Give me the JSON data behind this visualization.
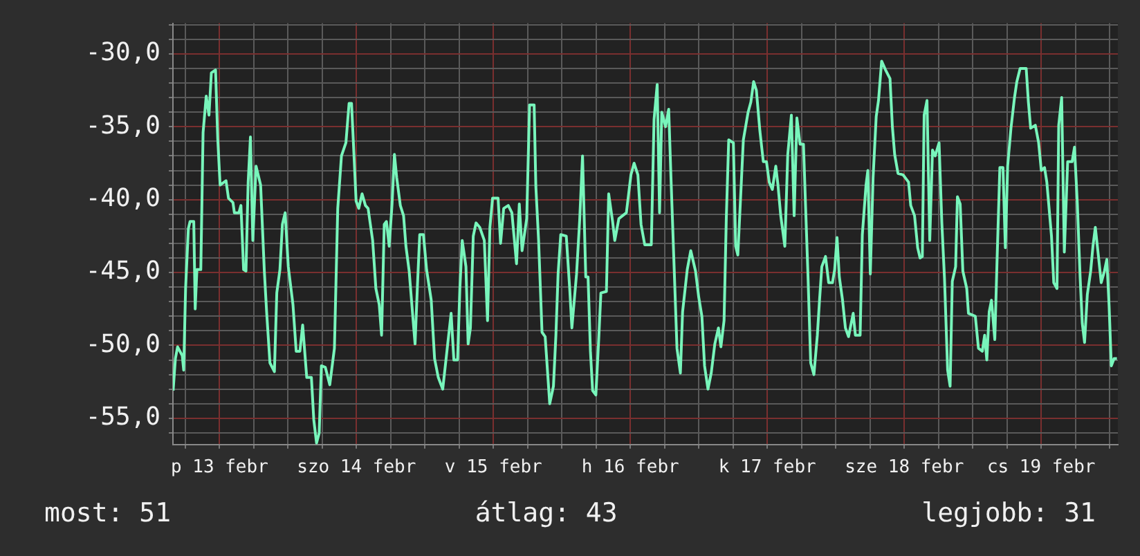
{
  "chart_data": {
    "type": "line",
    "xlim": [
      "--02-12T15:50",
      "--02-19T13:26"
    ],
    "ylim": [
      -56.8,
      -27.9
    ],
    "xticks": [
      {
        "value": "--02-12T18:00",
        "label": null
      },
      {
        "value": "--02-13",
        "label": "p 13 febr"
      },
      {
        "value": "--02-13T06:00",
        "label": null
      },
      {
        "value": "--02-13T12:00",
        "label": null
      },
      {
        "value": "--02-13T18:00",
        "label": null
      },
      {
        "value": "--02-14",
        "label": "szo 14 febr"
      },
      {
        "value": "--02-14T06:00",
        "label": null
      },
      {
        "value": "--02-14T12:00",
        "label": null
      },
      {
        "value": "--02-14T18:00",
        "label": null
      },
      {
        "value": "--02-15",
        "label": "v 15 febr"
      },
      {
        "value": "--02-15T06:00",
        "label": null
      },
      {
        "value": "--02-15T12:00",
        "label": null
      },
      {
        "value": "--02-15T18:00",
        "label": null
      },
      {
        "value": "--02-16",
        "label": "h 16 febr"
      },
      {
        "value": "--02-16T06:00",
        "label": null
      },
      {
        "value": "--02-16T12:00",
        "label": null
      },
      {
        "value": "--02-16T18:00",
        "label": null
      },
      {
        "value": "--02-17",
        "label": "k 17 febr"
      },
      {
        "value": "--02-17T06:00",
        "label": null
      },
      {
        "value": "--02-17T12:00",
        "label": null
      },
      {
        "value": "--02-17T18:00",
        "label": null
      },
      {
        "value": "--02-18",
        "label": "sze 18 febr"
      },
      {
        "value": "--02-18T06:00",
        "label": null
      },
      {
        "value": "--02-18T12:00",
        "label": null
      },
      {
        "value": "--02-18T18:00",
        "label": null
      },
      {
        "value": "--02-19",
        "label": "cs 19 febr"
      },
      {
        "value": "--02-19T06:00",
        "label": null
      },
      {
        "value": "--02-19T12:00",
        "label": null
      }
    ],
    "yticks": [
      {
        "value": -56,
        "label": null
      },
      {
        "value": -55,
        "label": "-55,0"
      },
      {
        "value": -54,
        "label": null
      },
      {
        "value": -53,
        "label": null
      },
      {
        "value": -52,
        "label": null
      },
      {
        "value": -51,
        "label": null
      },
      {
        "value": -50,
        "label": "-50,0"
      },
      {
        "value": -49,
        "label": null
      },
      {
        "value": -48,
        "label": null
      },
      {
        "value": -47,
        "label": null
      },
      {
        "value": -46,
        "label": null
      },
      {
        "value": -45,
        "label": "-45,0"
      },
      {
        "value": -44,
        "label": null
      },
      {
        "value": -43,
        "label": null
      },
      {
        "value": -42,
        "label": null
      },
      {
        "value": -41,
        "label": null
      },
      {
        "value": -40,
        "label": "-40,0"
      },
      {
        "value": -39,
        "label": null
      },
      {
        "value": -38,
        "label": null
      },
      {
        "value": -37,
        "label": null
      },
      {
        "value": -36,
        "label": null
      },
      {
        "value": -35,
        "label": "-35,0"
      },
      {
        "value": -34,
        "label": null
      },
      {
        "value": -33,
        "label": null
      },
      {
        "value": -32,
        "label": null
      },
      {
        "value": -31,
        "label": null
      },
      {
        "value": -30,
        "label": "-30,0"
      },
      {
        "value": -29,
        "label": null
      },
      {
        "value": -28,
        "label": null
      }
    ],
    "grid": true,
    "legend": false,
    "marker": "none",
    "line_style": "solid",
    "annotations": [
      "most: 51",
      "átlag: 43",
      "legjobb: 31"
    ],
    "series": [
      {
        "color": "#78f5bb",
        "x": [
          "--02-12T15:52",
          "--02-12T16:16",
          "--02-12T16:39",
          "--02-12T17:28",
          "--02-12T17:43",
          "--02-12T18:03",
          "--02-12T18:32",
          "--02-12T18:50",
          "--02-12T19:29",
          "--02-12T19:44",
          "--02-12T20:02",
          "--02-12T20:43",
          "--02-12T21:07",
          "--02-12T21:40",
          "--02-12T22:09",
          "--02-12T22:34",
          "--02-12T23:18",
          "--02-12T23:41",
          "--02-13T00:06",
          "--02-13T01:08",
          "--02-13T01:34",
          "--02-13T02:21",
          "--02-13T02:36",
          "--02-13T03:24",
          "--02-13T03:45",
          "--02-13T04:13",
          "--02-13T04:38",
          "--02-13T05:01",
          "--02-13T05:25",
          "--02-13T05:50",
          "--02-13T06:24",
          "--02-13T07:12",
          "--02-13T07:51",
          "--02-13T08:15",
          "--02-13T08:50",
          "--02-13T09:37",
          "--02-13T10:02",
          "--02-13T10:35",
          "--02-13T11:01",
          "--02-13T11:30",
          "--02-13T12:03",
          "--02-13T12:52",
          "--02-13T13:26",
          "--02-13T14:05",
          "--02-13T14:34",
          "--02-13T15:17",
          "--02-13T16:06",
          "--02-13T16:31",
          "--02-13T17:00",
          "--02-13T17:28",
          "--02-13T17:51",
          "--02-13T18:32",
          "--02-13T19:19",
          "--02-13T20:08",
          "--02-13T20:43",
          "--02-13T21:22",
          "--02-13T22:09",
          "--02-13T22:42",
          "--02-13T23:08",
          "--02-13T23:37",
          "--02-13T23:56",
          "--02-14T00:24",
          "--02-14T00:59",
          "--02-14T01:34",
          "--02-14T02:02",
          "--02-14T02:50",
          "--02-14T03:24",
          "--02-14T03:59",
          "--02-14T04:24",
          "--02-14T04:52",
          "--02-14T05:15",
          "--02-14T05:44",
          "--02-14T06:14",
          "--02-14T06:39",
          "--02-14T07:03",
          "--02-14T07:41",
          "--02-14T08:15",
          "--02-14T08:40",
          "--02-14T09:14",
          "--02-14T09:52",
          "--02-14T10:16",
          "--02-14T10:41",
          "--02-14T11:05",
          "--02-14T11:44",
          "--02-14T12:17",
          "--02-14T13:06",
          "--02-14T13:41",
          "--02-14T14:20",
          "--02-14T15:07",
          "--02-14T15:56",
          "--02-14T16:35",
          "--02-14T17:04",
          "--02-14T17:43",
          "--02-14T18:07",
          "--02-14T18:32",
          "--02-14T19:11",
          "--02-14T19:34",
          "--02-14T19:58",
          "--02-14T20:28",
          "--02-14T20:57",
          "--02-14T21:36",
          "--02-14T22:24",
          "--02-14T22:58",
          "--02-14T23:23",
          "--02-14T23:51",
          "--02-15T00:49",
          "--02-15T01:15",
          "--02-15T01:48",
          "--02-15T02:36",
          "--02-15T03:14",
          "--02-15T04:03",
          "--02-15T04:32",
          "--02-15T05:01",
          "--02-15T05:50",
          "--02-15T06:20",
          "--02-15T07:08",
          "--02-15T07:26",
          "--02-15T07:55",
          "--02-15T08:31",
          "--02-15T09:04",
          "--02-15T09:52",
          "--02-15T10:31",
          "--02-15T10:57",
          "--02-15T11:20",
          "--02-15T11:48",
          "--02-15T12:46",
          "--02-15T13:22",
          "--02-15T13:45",
          "--02-15T14:34",
          "--02-15T15:07",
          "--02-15T15:37",
          "--02-15T16:11",
          "--02-15T16:35",
          "--02-15T17:00",
          "--02-15T17:23",
          "--02-15T17:57",
          "--02-15T18:27",
          "--02-15T18:50",
          "--02-15T19:48",
          "--02-15T20:12",
          "--02-15T20:53",
          "--02-15T21:16",
          "--02-15T21:59",
          "--02-15T23:18",
          "--02-16T00:06",
          "--02-16T00:39",
          "--02-16T01:19",
          "--02-16T01:52",
          "--02-16T02:31",
          "--02-16T03:40",
          "--02-16T04:09",
          "--02-16T04:42",
          "--02-16T05:07",
          "--02-16T05:30",
          "--02-16T06:10",
          "--02-16T06:43",
          "--02-16T07:08",
          "--02-16T07:41",
          "--02-16T08:10",
          "--02-16T08:46",
          "--02-16T09:09",
          "--02-16T09:58",
          "--02-16T10:35",
          "--02-16T11:25",
          "--02-16T11:59",
          "--02-16T12:32",
          "--02-16T13:00",
          "--02-16T13:36",
          "--02-16T14:10",
          "--02-16T14:48",
          "--02-16T15:26",
          "--02-16T15:52",
          "--02-16T16:25",
          "--02-16T16:49",
          "--02-16T17:14",
          "--02-16T18:03",
          "--02-16T18:27",
          "--02-16T18:50",
          "--02-16T19:15",
          "--02-16T19:48",
          "--02-16T20:38",
          "--02-16T21:07",
          "--02-16T21:36",
          "--02-16T22:05",
          "--02-16T22:42",
          "--02-16T23:18",
          "--02-16T23:51",
          "--02-17T00:20",
          "--02-17T00:53",
          "--02-17T01:29",
          "--02-17T01:52",
          "--02-17T02:21",
          "--02-17T03:04",
          "--02-17T03:35",
          "--02-17T04:13",
          "--02-17T04:42",
          "--02-17T05:11",
          "--02-17T05:44",
          "--02-17T06:20",
          "--02-17T06:43",
          "--02-17T07:08",
          "--02-17T07:36",
          "--02-17T08:10",
          "--02-17T08:46",
          "--02-17T09:09",
          "--02-17T09:33",
          "--02-17T10:12",
          "--02-17T10:45",
          "--02-17T11:25",
          "--02-17T11:48",
          "--02-17T12:13",
          "--02-17T12:37",
          "--02-17T13:11",
          "--02-17T13:41",
          "--02-17T14:14",
          "--02-17T15:03",
          "--02-17T15:26",
          "--02-17T16:16",
          "--02-17T16:39",
          "--02-17T17:18",
          "--02-17T17:37",
          "--02-17T18:03",
          "--02-17T18:32",
          "--02-17T19:05",
          "--02-17T19:29",
          "--02-17T20:02",
          "--02-17T20:43",
          "--02-17T21:30",
          "--02-17T21:55",
          "--02-17T22:19",
          "--02-17T22:54",
          "--02-17T23:47",
          "--02-18T00:45",
          "--02-18T01:08",
          "--02-18T01:48",
          "--02-18T02:21",
          "--02-18T02:46",
          "--02-18T03:10",
          "--02-18T03:29",
          "--02-18T03:59",
          "--02-18T04:28",
          "--02-18T04:57",
          "--02-18T05:25",
          "--02-18T06:06",
          "--02-18T06:35",
          "--02-18T07:03",
          "--02-18T07:36",
          "--02-18T08:02",
          "--02-18T08:25",
          "--02-18T09:00",
          "--02-18T09:19",
          "--02-18T09:48",
          "--02-18T10:16",
          "--02-18T10:57",
          "--02-18T11:15",
          "--02-18T12:27",
          "--02-18T13:00",
          "--02-18T13:41",
          "--02-18T14:05",
          "--02-18T14:28",
          "--02-18T14:53",
          "--02-18T15:17",
          "--02-18T15:52",
          "--02-18T16:16",
          "--02-18T16:45",
          "--02-18T17:18",
          "--02-18T17:43",
          "--02-18T18:07",
          "--02-18T18:42",
          "--02-18T19:19",
          "--02-18T19:44",
          "--02-18T20:18",
          "--02-18T21:22",
          "--02-18T21:45",
          "--02-18T22:09",
          "--02-18T22:58",
          "--02-18T23:33",
          "--02-19T00:01",
          "--02-19T00:35",
          "--02-19T00:59",
          "--02-19T01:48",
          "--02-19T02:12",
          "--02-19T02:46",
          "--02-19T03:04",
          "--02-19T03:35",
          "--02-19T04:03",
          "--02-19T04:38",
          "--02-19T05:25",
          "--02-19T05:50",
          "--02-19T06:20",
          "--02-19T06:49",
          "--02-19T07:12",
          "--02-19T07:36",
          "--02-19T08:05",
          "--02-19T08:40",
          "--02-19T09:04",
          "--02-19T09:29",
          "--02-19T10:02",
          "--02-19T10:31",
          "--02-19T11:05",
          "--02-19T11:30",
          "--02-19T11:54",
          "--02-19T12:17",
          "--02-19T12:46",
          "--02-19T13:16"
        ],
        "values": [
          -53.1,
          -50.9,
          -50.1,
          -50.7,
          -51.7,
          -46.1,
          -42.0,
          -41.5,
          -41.5,
          -47.5,
          -44.8,
          -44.8,
          -35.4,
          -32.9,
          -34.2,
          -31.3,
          -31.1,
          -35.8,
          -39.0,
          -38.7,
          -39.9,
          -40.2,
          -40.9,
          -40.9,
          -40.4,
          -44.8,
          -44.9,
          -38.8,
          -35.7,
          -42.8,
          -37.7,
          -39.0,
          -44.9,
          -47.7,
          -51.2,
          -51.8,
          -46.4,
          -44.8,
          -41.7,
          -40.9,
          -44.6,
          -47.2,
          -50.4,
          -50.4,
          -48.6,
          -52.2,
          -52.2,
          -55.1,
          -56.7,
          -56.0,
          -51.4,
          -51.5,
          -52.7,
          -50.2,
          -40.6,
          -37.0,
          -36.1,
          -33.4,
          -33.4,
          -37.4,
          -40.1,
          -40.6,
          -39.6,
          -40.4,
          -40.6,
          -42.8,
          -46.1,
          -47.2,
          -49.3,
          -41.7,
          -41.5,
          -43.2,
          -40.3,
          -36.9,
          -38.5,
          -40.4,
          -41.1,
          -43.2,
          -44.9,
          -48.0,
          -49.9,
          -45.9,
          -42.4,
          -42.4,
          -44.8,
          -46.9,
          -50.9,
          -52.2,
          -53.0,
          -50.1,
          -47.8,
          -51.0,
          -51.0,
          -46.1,
          -42.8,
          -44.6,
          -49.9,
          -48.8,
          -42.5,
          -41.6,
          -41.9,
          -42.8,
          -48.3,
          -41.9,
          -39.9,
          -39.9,
          -43.0,
          -40.6,
          -40.4,
          -40.9,
          -44.4,
          -40.3,
          -43.5,
          -41.3,
          -33.5,
          -33.5,
          -39.1,
          -42.8,
          -49.1,
          -49.4,
          -54.0,
          -52.8,
          -49.3,
          -45.1,
          -42.4,
          -42.5,
          -46.1,
          -48.8,
          -45.1,
          -41.4,
          -37.0,
          -45.3,
          -45.3,
          -50.4,
          -53.1,
          -53.4,
          -49.6,
          -46.4,
          -46.3,
          -39.6,
          -41.5,
          -42.8,
          -41.3,
          -40.9,
          -38.3,
          -37.5,
          -38.3,
          -41.7,
          -43.1,
          -43.1,
          -34.5,
          -32.1,
          -40.9,
          -34.0,
          -35.0,
          -33.8,
          -38.7,
          -44.8,
          -50.2,
          -51.9,
          -47.7,
          -44.8,
          -43.5,
          -44.9,
          -46.7,
          -48.0,
          -51.4,
          -53.0,
          -51.9,
          -49.9,
          -48.8,
          -50.1,
          -48.3,
          -41.2,
          -35.9,
          -36.1,
          -43.2,
          -43.8,
          -40.4,
          -35.9,
          -34.0,
          -33.3,
          -31.9,
          -32.5,
          -35.3,
          -37.4,
          -37.4,
          -38.8,
          -39.3,
          -37.7,
          -39.0,
          -41.1,
          -43.2,
          -36.9,
          -34.2,
          -41.1,
          -34.4,
          -36.2,
          -36.2,
          -40.6,
          -45.3,
          -51.2,
          -52.0,
          -49.3,
          -46.9,
          -44.6,
          -43.9,
          -45.7,
          -45.7,
          -44.8,
          -42.6,
          -45.3,
          -46.9,
          -48.8,
          -49.4,
          -47.8,
          -49.3,
          -49.3,
          -42.4,
          -39.0,
          -38.0,
          -45.1,
          -38.5,
          -34.3,
          -33.2,
          -30.5,
          -31.1,
          -31.7,
          -35.0,
          -36.9,
          -38.2,
          -38.3,
          -38.8,
          -40.4,
          -41.1,
          -43.3,
          -44.0,
          -43.9,
          -34.2,
          -33.2,
          -42.8,
          -36.6,
          -37.0,
          -36.1,
          -41.6,
          -45.4,
          -51.7,
          -52.8,
          -45.6,
          -44.6,
          -39.8,
          -40.3,
          -44.9,
          -46.1,
          -47.8,
          -48.0,
          -50.2,
          -50.4,
          -49.3,
          -51.0,
          -47.7,
          -46.9,
          -49.6,
          -44.1,
          -37.8,
          -37.8,
          -43.3,
          -37.7,
          -35.1,
          -33.0,
          -31.9,
          -31.0,
          -31.0,
          -33.3,
          -35.1,
          -34.9,
          -36.1,
          -38.0,
          -37.8,
          -38.8,
          -42.5,
          -45.7,
          -46.1,
          -34.9,
          -33.0,
          -43.6,
          -37.4,
          -37.4,
          -36.4,
          -40.3,
          -45.3,
          -48.5,
          -49.8,
          -46.5,
          -44.9,
          -43.2,
          -41.9,
          -43.9,
          -45.7,
          -44.9,
          -44.1,
          -47.3,
          -51.4,
          -50.9,
          -50.9
        ]
      }
    ]
  }
}
